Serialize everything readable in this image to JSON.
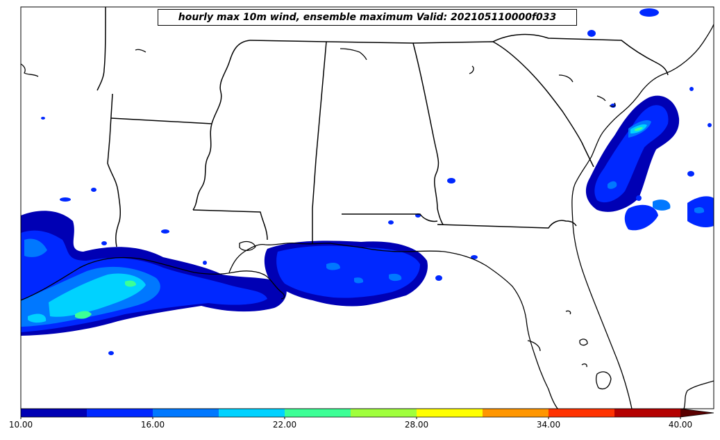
{
  "title": "hourly max 10m wind, ensemble maximum Valid: 202105110000f033",
  "colorbar": {
    "tick_labels": [
      "10.00",
      "16.00",
      "22.00",
      "28.00",
      "34.00",
      "40.00"
    ],
    "ticks": [
      10,
      16,
      22,
      28,
      34,
      40
    ],
    "range": [
      10,
      40
    ],
    "extend": "max",
    "levels": [
      10,
      13,
      16,
      19,
      22,
      25,
      28,
      31,
      34,
      37,
      40
    ],
    "colors": [
      "#0000b4",
      "#0028ff",
      "#0078ff",
      "#00d2ff",
      "#3cff96",
      "#a0ff3c",
      "#ffff00",
      "#ff9600",
      "#ff3200",
      "#b40000"
    ],
    "extend_color": "#5a0000"
  }
}
